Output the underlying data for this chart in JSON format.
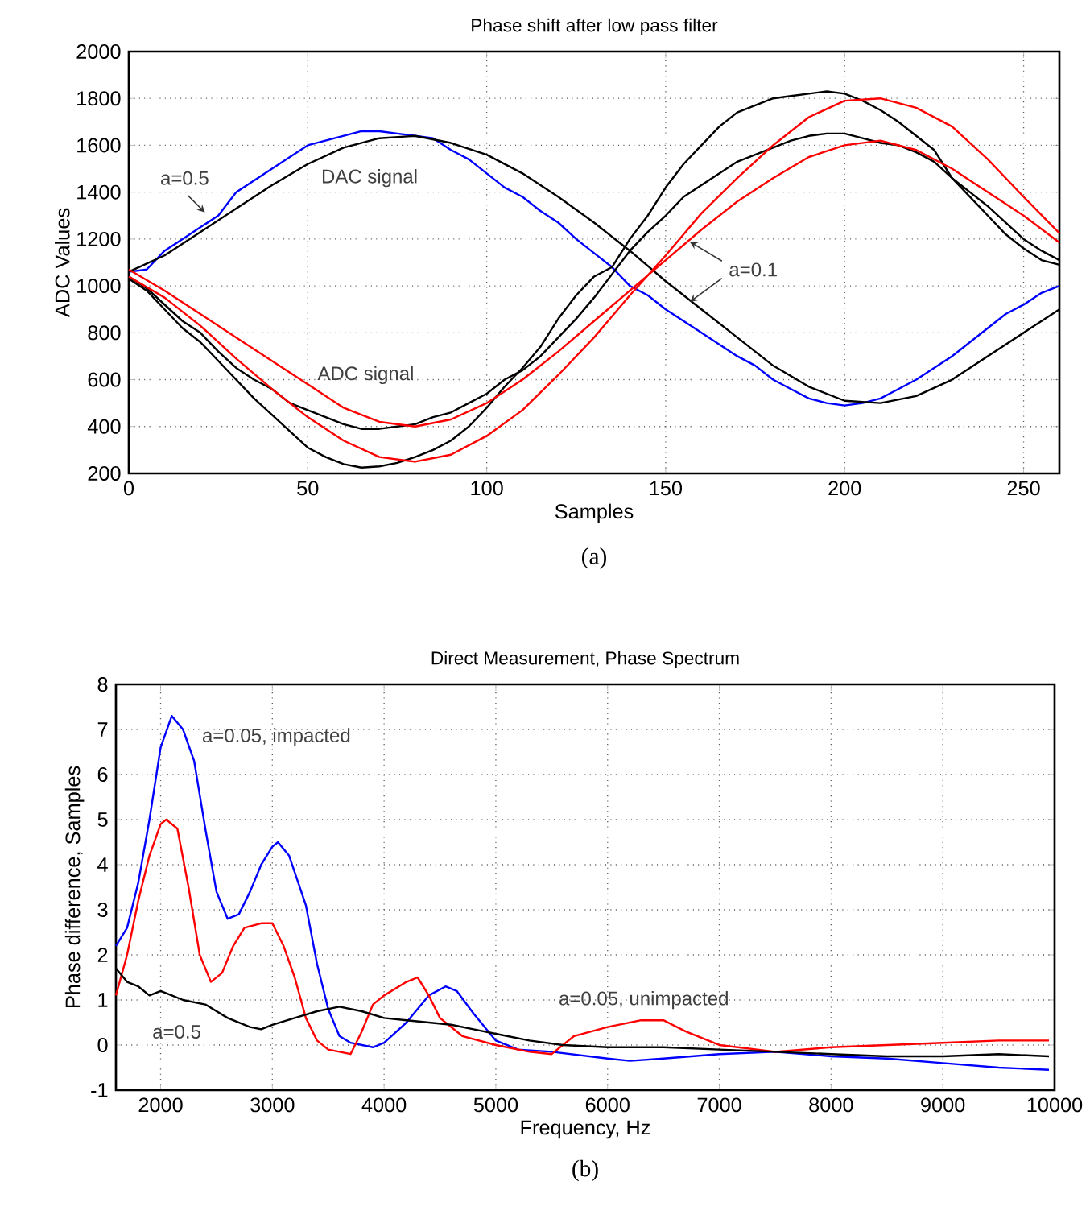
{
  "chart_data": [
    {
      "type": "line",
      "title": "Phase shift after low pass filter",
      "xlabel": "Samples",
      "ylabel": "ADC Values",
      "xlim": [
        0,
        260
      ],
      "ylim": [
        200,
        2000
      ],
      "xticks": [
        0,
        50,
        100,
        150,
        200,
        250
      ],
      "yticks": [
        200,
        400,
        600,
        800,
        1000,
        1200,
        1400,
        1600,
        1800,
        2000
      ],
      "grid": true,
      "annotations": [
        "a=0.5",
        "DAC signal",
        "ADC signal",
        "a=0.1",
        "(a)"
      ],
      "series": [
        {
          "color": "#0000ff",
          "x": [
            0,
            5,
            10,
            15,
            20,
            25,
            30,
            35,
            40,
            45,
            50,
            55,
            60,
            65,
            70,
            75,
            80,
            85,
            90,
            95,
            100,
            105,
            110,
            115,
            120,
            125,
            130,
            135,
            140,
            145,
            150,
            155,
            160,
            165,
            170,
            175,
            180,
            185,
            190,
            195,
            200,
            205,
            210,
            215,
            220,
            225,
            230,
            235,
            240,
            245,
            250,
            255,
            260
          ],
          "values": [
            1060,
            1070,
            1150,
            1200,
            1250,
            1300,
            1400,
            1450,
            1500,
            1550,
            1600,
            1620,
            1640,
            1660,
            1660,
            1650,
            1640,
            1630,
            1580,
            1540,
            1480,
            1420,
            1380,
            1320,
            1270,
            1200,
            1140,
            1080,
            1000,
            960,
            900,
            850,
            800,
            750,
            700,
            660,
            600,
            560,
            520,
            500,
            490,
            500,
            520,
            560,
            600,
            650,
            700,
            760,
            820,
            880,
            920,
            970,
            1000
          ]
        },
        {
          "color": "#000000",
          "x": [
            0,
            10,
            20,
            30,
            40,
            50,
            60,
            70,
            80,
            90,
            100,
            110,
            120,
            130,
            140,
            150,
            160,
            170,
            180,
            190,
            200,
            210,
            220,
            230,
            240,
            250,
            260
          ],
          "values": [
            1060,
            1130,
            1230,
            1330,
            1430,
            1520,
            1590,
            1630,
            1640,
            1610,
            1560,
            1480,
            1380,
            1270,
            1150,
            1020,
            900,
            780,
            660,
            570,
            510,
            500,
            530,
            600,
            700,
            800,
            900
          ]
        },
        {
          "color": "#000000",
          "x": [
            0,
            5,
            10,
            15,
            20,
            25,
            30,
            35,
            40,
            45,
            50,
            55,
            60,
            65,
            70,
            75,
            80,
            85,
            90,
            95,
            100,
            105,
            110,
            115,
            120,
            125,
            130,
            135,
            140,
            145,
            150,
            155,
            160,
            165,
            170,
            175,
            180,
            185,
            190,
            195,
            200,
            205,
            210,
            215,
            220,
            225,
            230,
            235,
            240,
            245,
            250,
            255,
            260
          ],
          "values": [
            1040,
            990,
            920,
            850,
            800,
            720,
            650,
            600,
            560,
            500,
            470,
            440,
            410,
            390,
            390,
            400,
            410,
            440,
            460,
            500,
            540,
            600,
            640,
            700,
            780,
            860,
            950,
            1050,
            1150,
            1230,
            1300,
            1380,
            1430,
            1480,
            1530,
            1560,
            1590,
            1620,
            1640,
            1650,
            1650,
            1630,
            1610,
            1600,
            1570,
            1530,
            1460,
            1400,
            1340,
            1270,
            1200,
            1150,
            1110
          ]
        },
        {
          "color": "#000000",
          "x": [
            0,
            5,
            10,
            15,
            20,
            25,
            30,
            35,
            40,
            45,
            50,
            55,
            60,
            65,
            70,
            75,
            80,
            85,
            90,
            95,
            100,
            105,
            110,
            115,
            120,
            125,
            130,
            135,
            140,
            145,
            150,
            155,
            160,
            165,
            170,
            175,
            180,
            185,
            190,
            195,
            200,
            205,
            210,
            215,
            220,
            225,
            230,
            235,
            240,
            245,
            250,
            255,
            260
          ],
          "values": [
            1030,
            980,
            900,
            820,
            760,
            680,
            600,
            520,
            450,
            380,
            310,
            270,
            240,
            225,
            230,
            245,
            270,
            300,
            340,
            400,
            480,
            570,
            650,
            740,
            860,
            960,
            1040,
            1080,
            1200,
            1300,
            1420,
            1520,
            1600,
            1680,
            1740,
            1770,
            1800,
            1810,
            1820,
            1830,
            1820,
            1790,
            1750,
            1700,
            1640,
            1580,
            1460,
            1380,
            1300,
            1220,
            1160,
            1110,
            1090
          ]
        },
        {
          "color": "#ff0000",
          "x": [
            0,
            10,
            20,
            30,
            40,
            50,
            60,
            70,
            80,
            90,
            100,
            110,
            120,
            130,
            140,
            150,
            160,
            170,
            180,
            190,
            200,
            210,
            220,
            230,
            240,
            250,
            260
          ],
          "values": [
            1070,
            980,
            880,
            780,
            680,
            580,
            480,
            420,
            400,
            430,
            500,
            600,
            720,
            850,
            980,
            1110,
            1240,
            1360,
            1460,
            1550,
            1600,
            1620,
            1580,
            1500,
            1400,
            1300,
            1185
          ]
        },
        {
          "color": "#ff0000",
          "x": [
            0,
            10,
            20,
            30,
            40,
            50,
            60,
            70,
            80,
            90,
            100,
            110,
            120,
            130,
            140,
            150,
            160,
            170,
            180,
            190,
            200,
            210,
            220,
            230,
            240,
            250,
            260
          ],
          "values": [
            1040,
            950,
            830,
            690,
            560,
            440,
            340,
            270,
            250,
            280,
            360,
            470,
            620,
            780,
            960,
            1130,
            1310,
            1460,
            1600,
            1720,
            1790,
            1800,
            1760,
            1680,
            1540,
            1380,
            1225
          ]
        }
      ]
    },
    {
      "type": "line",
      "title": "Direct Measurement, Phase Spectrum",
      "xlabel": "Frequency, Hz",
      "ylabel": "Phase difference, Samples",
      "xlim": [
        1600,
        10000
      ],
      "ylim": [
        -1,
        8
      ],
      "xticks": [
        2000,
        3000,
        4000,
        5000,
        6000,
        7000,
        8000,
        9000,
        10000
      ],
      "yticks": [
        -1,
        0,
        1,
        2,
        3,
        4,
        5,
        6,
        7,
        8
      ],
      "grid": true,
      "annotations": [
        "a=0.05, impacted",
        "a=0.05, unimpacted",
        "a=0.5",
        "(b)"
      ],
      "series": [
        {
          "color": "#0000ff",
          "x": [
            1600,
            1700,
            1800,
            1900,
            2000,
            2100,
            2200,
            2300,
            2400,
            2500,
            2600,
            2700,
            2800,
            2900,
            3000,
            3050,
            3150,
            3300,
            3400,
            3500,
            3600,
            3700,
            3900,
            4000,
            4200,
            4400,
            4550,
            4650,
            4800,
            5000,
            5200,
            5500,
            6000,
            6200,
            6500,
            7000,
            7500,
            8000,
            8500,
            9000,
            9500,
            9950
          ],
          "values": [
            2.2,
            2.6,
            3.6,
            5.0,
            6.6,
            7.3,
            7.0,
            6.3,
            4.8,
            3.4,
            2.8,
            2.9,
            3.4,
            4.0,
            4.4,
            4.5,
            4.2,
            3.1,
            1.8,
            0.8,
            0.2,
            0.05,
            -0.05,
            0.05,
            0.5,
            1.1,
            1.3,
            1.2,
            0.7,
            0.1,
            -0.1,
            -0.15,
            -0.3,
            -0.35,
            -0.3,
            -0.2,
            -0.15,
            -0.25,
            -0.3,
            -0.4,
            -0.5,
            -0.55
          ]
        },
        {
          "color": "#ff0000",
          "x": [
            1600,
            1700,
            1800,
            1900,
            2000,
            2050,
            2150,
            2250,
            2350,
            2450,
            2550,
            2650,
            2750,
            2900,
            3000,
            3100,
            3200,
            3300,
            3400,
            3500,
            3700,
            3800,
            3900,
            4000,
            4200,
            4300,
            4400,
            4500,
            4700,
            5000,
            5300,
            5500,
            5700,
            6000,
            6300,
            6500,
            6700,
            7000,
            7500,
            8000,
            8500,
            9000,
            9500,
            9950
          ],
          "values": [
            1.1,
            2.0,
            3.2,
            4.2,
            4.9,
            5.0,
            4.8,
            3.5,
            2.0,
            1.4,
            1.6,
            2.2,
            2.6,
            2.7,
            2.7,
            2.2,
            1.5,
            0.6,
            0.1,
            -0.1,
            -0.2,
            0.3,
            0.9,
            1.1,
            1.4,
            1.5,
            1.1,
            0.6,
            0.2,
            0.0,
            -0.15,
            -0.2,
            0.2,
            0.4,
            0.55,
            0.55,
            0.3,
            0.0,
            -0.15,
            -0.05,
            0.0,
            0.05,
            0.1,
            0.1
          ]
        },
        {
          "color": "#000000",
          "x": [
            1600,
            1700,
            1800,
            1900,
            2000,
            2100,
            2200,
            2400,
            2600,
            2800,
            2900,
            3000,
            3200,
            3400,
            3600,
            3800,
            4000,
            4200,
            4400,
            4600,
            4800,
            5000,
            5300,
            5600,
            6000,
            6500,
            7000,
            7500,
            8000,
            8500,
            9000,
            9500,
            9950
          ],
          "values": [
            1.7,
            1.4,
            1.3,
            1.1,
            1.2,
            1.1,
            1.0,
            0.9,
            0.6,
            0.4,
            0.35,
            0.45,
            0.6,
            0.75,
            0.85,
            0.75,
            0.6,
            0.55,
            0.5,
            0.45,
            0.35,
            0.25,
            0.1,
            0.0,
            -0.05,
            -0.05,
            -0.1,
            -0.15,
            -0.2,
            -0.25,
            -0.25,
            -0.2,
            -0.25
          ]
        }
      ]
    }
  ]
}
